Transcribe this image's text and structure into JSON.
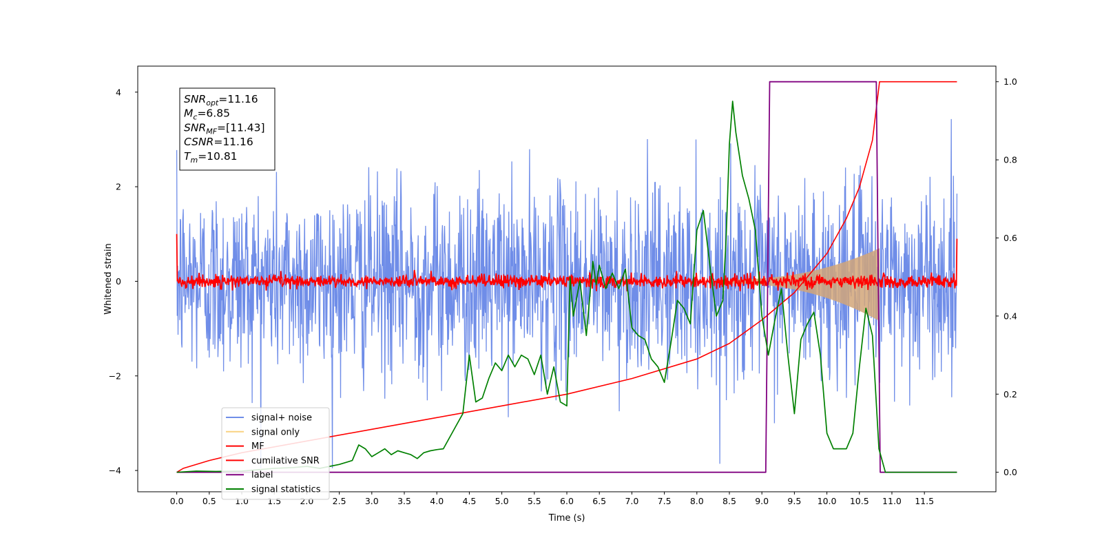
{
  "chart_data": {
    "type": "line",
    "xlabel": "Time (s)",
    "ylabel": "Whitened strain",
    "xlim": [
      -0.6,
      12.6
    ],
    "ylim": [
      -4.45,
      4.55
    ],
    "y2lim": [
      -0.05,
      1.04
    ],
    "x_ticks": [
      "0.0",
      "0.5",
      "1.0",
      "1.5",
      "2.0",
      "2.5",
      "3.0",
      "3.5",
      "4.0",
      "4.5",
      "5.0",
      "5.5",
      "6.0",
      "6.5",
      "7.0",
      "7.5",
      "8.0",
      "8.5",
      "9.0",
      "9.5",
      "10.0",
      "10.5",
      "11.0",
      "11.5"
    ],
    "y_ticks": [
      "4",
      "2",
      "0",
      "−2",
      "−4"
    ],
    "y2_ticks": [
      "1.0",
      "0.8",
      "0.6",
      "0.4",
      "0.2",
      "0.0"
    ],
    "info_box": [
      {
        "var": "SNR",
        "sub": "opt",
        "value": "=11.16"
      },
      {
        "var": "M",
        "sub": "c",
        "value": "=6.85"
      },
      {
        "var": "SNR",
        "sub": "MF",
        "value": "=[11.43]"
      },
      {
        "var": "CSNR",
        "sub": "",
        "value": "=11.16"
      },
      {
        "var": "T",
        "sub": "m",
        "value": "=10.81"
      }
    ],
    "legend": [
      "signal+ noise",
      "signal only",
      "MF",
      "cumilative SNR",
      "label",
      "signal statistics"
    ],
    "series": [
      {
        "name": "signal+ noise",
        "axis": "left",
        "kind": "noise",
        "x_range": [
          0.0,
          12.0
        ],
        "std": 1.0
      },
      {
        "name": "signal only",
        "axis": "left",
        "kind": "chirp",
        "x_range": [
          0.0,
          10.81
        ],
        "peak_amplitude": 0.7
      },
      {
        "name": "MF",
        "axis": "left",
        "kind": "noise",
        "x_range": [
          0.0,
          12.0
        ],
        "std": 0.07,
        "start_value": 1.0,
        "end_value": 0.9
      },
      {
        "name": "cumilative SNR",
        "axis": "right",
        "x": [
          0.0,
          0.1,
          0.5,
          1.0,
          2.0,
          3.0,
          4.0,
          5.0,
          6.0,
          7.0,
          8.0,
          8.5,
          9.0,
          9.5,
          10.0,
          10.3,
          10.5,
          10.7,
          10.81,
          11.0,
          12.0
        ],
        "y": [
          0.0,
          0.01,
          0.03,
          0.05,
          0.08,
          0.11,
          0.14,
          0.17,
          0.2,
          0.24,
          0.29,
          0.33,
          0.39,
          0.46,
          0.56,
          0.65,
          0.73,
          0.85,
          1.0,
          1.0,
          1.0
        ]
      },
      {
        "name": "label",
        "axis": "right",
        "x": [
          0.0,
          9.06,
          9.12,
          10.76,
          10.82,
          12.0
        ],
        "y": [
          0.0,
          0.0,
          1.0,
          1.0,
          0.0,
          0.0
        ]
      },
      {
        "name": "signal statistics",
        "axis": "right",
        "x": [
          0.0,
          0.3,
          0.6,
          1.0,
          1.5,
          1.8,
          2.0,
          2.2,
          2.5,
          2.7,
          2.8,
          2.9,
          3.0,
          3.1,
          3.2,
          3.3,
          3.4,
          3.5,
          3.6,
          3.7,
          3.8,
          3.9,
          4.0,
          4.1,
          4.2,
          4.3,
          4.4,
          4.5,
          4.55,
          4.6,
          4.7,
          4.8,
          4.9,
          5.0,
          5.1,
          5.2,
          5.3,
          5.4,
          5.5,
          5.6,
          5.7,
          5.8,
          5.9,
          6.0,
          6.05,
          6.1,
          6.2,
          6.3,
          6.4,
          6.45,
          6.5,
          6.6,
          6.7,
          6.8,
          6.9,
          7.0,
          7.1,
          7.2,
          7.3,
          7.4,
          7.5,
          7.6,
          7.7,
          7.8,
          7.9,
          8.0,
          8.1,
          8.2,
          8.3,
          8.4,
          8.45,
          8.5,
          8.55,
          8.6,
          8.7,
          8.8,
          8.9,
          9.0,
          9.1,
          9.2,
          9.3,
          9.4,
          9.5,
          9.6,
          9.7,
          9.8,
          9.9,
          10.0,
          10.1,
          10.2,
          10.3,
          10.4,
          10.5,
          10.6,
          10.7,
          10.8,
          10.9,
          11.0,
          11.5,
          12.0
        ],
        "y": [
          0.0,
          0.003,
          0.002,
          0.003,
          0.01,
          0.012,
          0.015,
          0.01,
          0.02,
          0.03,
          0.07,
          0.06,
          0.04,
          0.05,
          0.06,
          0.045,
          0.055,
          0.05,
          0.045,
          0.035,
          0.05,
          0.055,
          0.058,
          0.06,
          0.09,
          0.12,
          0.15,
          0.3,
          0.24,
          0.18,
          0.19,
          0.24,
          0.28,
          0.26,
          0.3,
          0.27,
          0.3,
          0.29,
          0.25,
          0.3,
          0.2,
          0.27,
          0.18,
          0.17,
          0.5,
          0.4,
          0.49,
          0.35,
          0.54,
          0.48,
          0.53,
          0.47,
          0.51,
          0.47,
          0.52,
          0.37,
          0.35,
          0.34,
          0.29,
          0.27,
          0.23,
          0.33,
          0.44,
          0.42,
          0.38,
          0.62,
          0.67,
          0.53,
          0.4,
          0.44,
          0.6,
          0.84,
          0.95,
          0.87,
          0.76,
          0.7,
          0.62,
          0.4,
          0.3,
          0.39,
          0.47,
          0.3,
          0.15,
          0.34,
          0.38,
          0.41,
          0.3,
          0.1,
          0.06,
          0.06,
          0.06,
          0.1,
          0.27,
          0.42,
          0.35,
          0.06,
          0.0,
          0.0,
          0.0,
          0.0
        ]
      }
    ]
  },
  "colors": {
    "noise": "#6f8de8",
    "signal": "#d2a679",
    "signal_legend": "#f9d280",
    "mf": "#ff0000",
    "csnr": "#ff0000",
    "label": "#800080",
    "stats": "#008000"
  }
}
